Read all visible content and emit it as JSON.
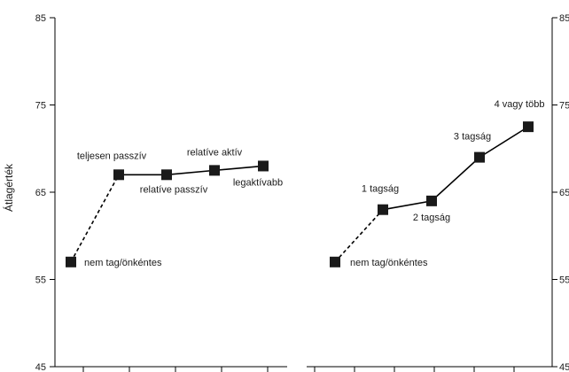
{
  "chart_data": {
    "type": "line",
    "ylabel": "Átlagérték",
    "ylim": [
      45,
      85
    ],
    "yticks": [
      "45",
      "55",
      "65",
      "75",
      "85"
    ],
    "grid": false,
    "panels": [
      {
        "points": [
          {
            "label": "nem tag/önkéntes",
            "value": 57
          },
          {
            "label": "teljesen passzív",
            "value": 67
          },
          {
            "label": "relatíve passzív",
            "value": 67
          },
          {
            "label": "relatíve aktív",
            "value": 67.5
          },
          {
            "label": "legaktívabb",
            "value": 68
          }
        ]
      },
      {
        "points": [
          {
            "label": "nem tag/önkéntes",
            "value": 57
          },
          {
            "label": "1 tagság",
            "value": 63
          },
          {
            "label": "2 tagság",
            "value": 64
          },
          {
            "label": "3 tagság",
            "value": 69
          },
          {
            "label": "4 vagy több",
            "value": 72.5
          }
        ]
      }
    ]
  }
}
